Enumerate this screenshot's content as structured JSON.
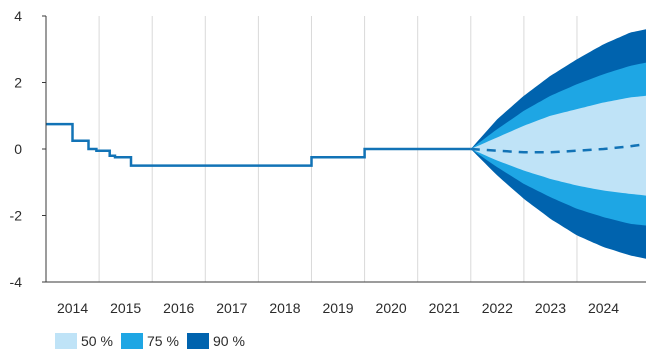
{
  "chart_data": {
    "type": "area",
    "title": "",
    "xlabel": "",
    "ylabel": "",
    "xlim": [
      2013.5,
      2024.8
    ],
    "ylim": [
      -4,
      4
    ],
    "y_ticks": [
      4,
      2,
      0,
      -2,
      -4
    ],
    "y_tick_labels": [
      "4",
      "2",
      "0",
      "-2",
      "-4"
    ],
    "x_tick_labels": [
      "2014",
      "2015",
      "2016",
      "2017",
      "2018",
      "2019",
      "2020",
      "2021",
      "2022",
      "2023",
      "2024"
    ],
    "x_tick_positions": [
      2014.0,
      2015.0,
      2016.0,
      2017.0,
      2018.0,
      2019.0,
      2020.0,
      2021.0,
      2022.0,
      2023.0,
      2024.0
    ],
    "grid": "vertical",
    "legend_position": "bottom-left",
    "colors": {
      "band_50": "#bfe3f7",
      "band_75": "#1ea6e4",
      "band_90": "#0063ae",
      "line": "#1273b6"
    },
    "history": {
      "name": "",
      "x": [
        2013.5,
        2014.0,
        2014.0,
        2014.3,
        2014.3,
        2014.45,
        2014.45,
        2014.7,
        2014.7,
        2014.8,
        2014.8,
        2015.1,
        2015.1,
        2015.75,
        2015.75,
        2018.5,
        2018.5,
        2019.5,
        2019.5,
        2021.5
      ],
      "y": [
        0.75,
        0.75,
        0.25,
        0.25,
        0.0,
        0.0,
        -0.05,
        -0.05,
        -0.2,
        -0.2,
        -0.25,
        -0.25,
        -0.5,
        -0.5,
        -0.5,
        -0.5,
        -0.25,
        -0.25,
        0.0,
        0.0
      ]
    },
    "forecast_median": {
      "x": [
        2021.5,
        2022.0,
        2022.5,
        2023.0,
        2023.5,
        2024.0,
        2024.5,
        2024.8
      ],
      "y": [
        0.0,
        -0.05,
        -0.1,
        -0.1,
        -0.05,
        0.0,
        0.08,
        0.15
      ]
    },
    "bands": [
      {
        "name": "90 %",
        "x": [
          2021.5,
          2022.0,
          2022.5,
          2023.0,
          2023.5,
          2024.0,
          2024.5,
          2024.8
        ],
        "upper": [
          0.0,
          0.9,
          1.6,
          2.2,
          2.7,
          3.15,
          3.5,
          3.6
        ],
        "lower": [
          0.0,
          -0.8,
          -1.5,
          -2.1,
          -2.6,
          -2.95,
          -3.2,
          -3.3
        ]
      },
      {
        "name": "75 %",
        "x": [
          2021.5,
          2022.0,
          2022.5,
          2023.0,
          2023.5,
          2024.0,
          2024.5,
          2024.8
        ],
        "upper": [
          0.0,
          0.6,
          1.15,
          1.6,
          1.95,
          2.25,
          2.5,
          2.6
        ],
        "lower": [
          0.0,
          -0.55,
          -1.05,
          -1.45,
          -1.8,
          -2.05,
          -2.25,
          -2.3
        ]
      },
      {
        "name": "50 %",
        "x": [
          2021.5,
          2022.0,
          2022.5,
          2023.0,
          2023.5,
          2024.0,
          2024.5,
          2024.8
        ],
        "upper": [
          0.0,
          0.35,
          0.7,
          1.0,
          1.2,
          1.4,
          1.55,
          1.6
        ],
        "lower": [
          0.0,
          -0.35,
          -0.65,
          -0.9,
          -1.1,
          -1.25,
          -1.35,
          -1.4
        ]
      }
    ],
    "legend": [
      {
        "label": "50 %",
        "color": "#bfe3f7"
      },
      {
        "label": "75 %",
        "color": "#1ea6e4"
      },
      {
        "label": "90 %",
        "color": "#0063ae"
      }
    ]
  }
}
